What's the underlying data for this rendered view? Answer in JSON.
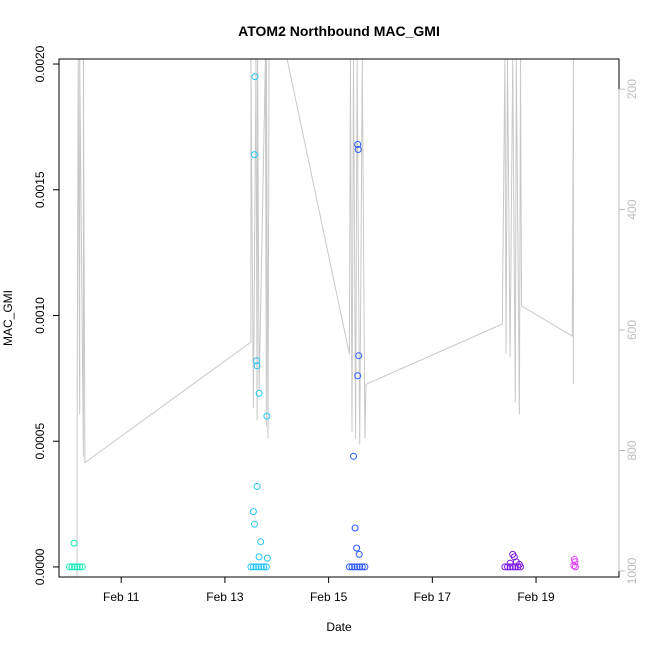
{
  "chart_data": {
    "type": "scatter",
    "title": "ATOM2 Northbound MAC_GMI",
    "xlabel": "Date",
    "ylabel": "MAC_GMI",
    "xlim": [
      9.8,
      20.6
    ],
    "ylim": [
      -4e-05,
      0.00202
    ],
    "x_ticks": [
      {
        "value": 11,
        "label": "Feb 11"
      },
      {
        "value": 13,
        "label": "Feb 13"
      },
      {
        "value": 15,
        "label": "Feb 15"
      },
      {
        "value": 17,
        "label": "Feb 17"
      },
      {
        "value": 19,
        "label": "Feb 19"
      }
    ],
    "y_ticks": [
      {
        "value": 0,
        "label": "0.0000"
      },
      {
        "value": 0.0005,
        "label": "0.0005"
      },
      {
        "value": 0.001,
        "label": "0.0010"
      },
      {
        "value": 0.0015,
        "label": "0.0015"
      },
      {
        "value": 0.002,
        "label": "0.0020"
      }
    ],
    "secondary_axis": {
      "ylim": [
        1010,
        150
      ],
      "ticks": [
        {
          "value": 200,
          "label": "200"
        },
        {
          "value": 400,
          "label": "400"
        },
        {
          "value": 600,
          "label": "600"
        },
        {
          "value": 800,
          "label": "800"
        },
        {
          "value": 1000,
          "label": "1000"
        }
      ],
      "color": "#bdbdbd"
    },
    "grid": false,
    "series": [
      {
        "color": "#1de9b6",
        "points": [
          [
            10.0,
            0.0
          ],
          [
            10.05,
            0.0
          ],
          [
            10.1,
            0.0
          ],
          [
            10.15,
            0.0
          ],
          [
            10.2,
            0.0
          ],
          [
            10.25,
            0.0
          ],
          [
            10.09,
            9.5e-05
          ]
        ]
      },
      {
        "color": "#29c5f6",
        "points": [
          [
            13.5,
            0.0
          ],
          [
            13.55,
            0.0
          ],
          [
            13.6,
            0.0
          ],
          [
            13.65,
            0.0
          ],
          [
            13.7,
            0.0
          ],
          [
            13.75,
            0.0
          ],
          [
            13.8,
            0.0
          ],
          [
            13.58,
            0.00195
          ],
          [
            13.57,
            0.00164
          ],
          [
            13.61,
            0.00082
          ],
          [
            13.62,
            0.0008
          ],
          [
            13.66,
            0.00069
          ],
          [
            13.81,
            0.0006
          ],
          [
            13.62,
            0.00032
          ],
          [
            13.55,
            0.00022
          ],
          [
            13.57,
            0.00017
          ],
          [
            13.69,
            0.0001
          ],
          [
            13.66,
            4e-05
          ],
          [
            13.82,
            3.5e-05
          ]
        ]
      },
      {
        "color": "#2e5bff",
        "points": [
          [
            15.4,
            0.0
          ],
          [
            15.45,
            0.0
          ],
          [
            15.5,
            0.0
          ],
          [
            15.55,
            0.0
          ],
          [
            15.6,
            0.0
          ],
          [
            15.65,
            0.0
          ],
          [
            15.7,
            0.0
          ],
          [
            15.56,
            0.00168
          ],
          [
            15.57,
            0.00166
          ],
          [
            15.58,
            0.00084
          ],
          [
            15.56,
            0.00076
          ],
          [
            15.48,
            0.00044
          ],
          [
            15.51,
            0.000155
          ],
          [
            15.54,
            7.5e-05
          ],
          [
            15.59,
            5e-05
          ]
        ]
      },
      {
        "color": "#7b1ce8",
        "points": [
          [
            18.4,
            0.0
          ],
          [
            18.45,
            0.0
          ],
          [
            18.5,
            0.0
          ],
          [
            18.55,
            0.0
          ],
          [
            18.6,
            0.0
          ],
          [
            18.65,
            0.0
          ],
          [
            18.7,
            0.0
          ],
          [
            18.55,
            5e-05
          ],
          [
            18.58,
            4e-05
          ],
          [
            18.62,
            2e-05
          ],
          [
            18.5,
            1.5e-05
          ],
          [
            18.68,
            1e-05
          ]
        ]
      },
      {
        "color": "#e040fb",
        "points": [
          [
            19.74,
            3e-05
          ],
          [
            19.75,
            2e-05
          ],
          [
            19.73,
            5e-06
          ],
          [
            19.76,
            0.0
          ]
        ]
      }
    ],
    "secondary_line": {
      "color": "#c8c8c8",
      "points": [
        [
          10.15,
          1010
        ],
        [
          10.15,
          750
        ],
        [
          10.17,
          150
        ],
        [
          10.2,
          740
        ],
        [
          10.2,
          150
        ],
        [
          10.27,
          810
        ],
        [
          10.27,
          150
        ],
        [
          10.3,
          820
        ],
        [
          13.5,
          620
        ],
        [
          13.5,
          150
        ],
        [
          13.55,
          730
        ],
        [
          13.6,
          150
        ],
        [
          13.62,
          750
        ],
        [
          13.63,
          150
        ],
        [
          13.66,
          700
        ],
        [
          13.78,
          150
        ],
        [
          13.8,
          760
        ],
        [
          13.8,
          150
        ],
        [
          13.83,
          780
        ],
        [
          13.85,
          150
        ],
        [
          14.2,
          150
        ],
        [
          15.4,
          640
        ],
        [
          15.42,
          150
        ],
        [
          15.45,
          770
        ],
        [
          15.48,
          150
        ],
        [
          15.52,
          780
        ],
        [
          15.55,
          150
        ],
        [
          15.6,
          790
        ],
        [
          15.65,
          150
        ],
        [
          15.7,
          780
        ],
        [
          15.72,
          690
        ],
        [
          18.35,
          590
        ],
        [
          18.4,
          150
        ],
        [
          18.42,
          640
        ],
        [
          18.45,
          150
        ],
        [
          18.5,
          645
        ],
        [
          18.55,
          150
        ],
        [
          18.6,
          720
        ],
        [
          18.62,
          150
        ],
        [
          18.68,
          740
        ],
        [
          18.7,
          150
        ],
        [
          18.72,
          560
        ],
        [
          19.7,
          610
        ],
        [
          19.72,
          150
        ],
        [
          19.72,
          690
        ]
      ]
    }
  }
}
